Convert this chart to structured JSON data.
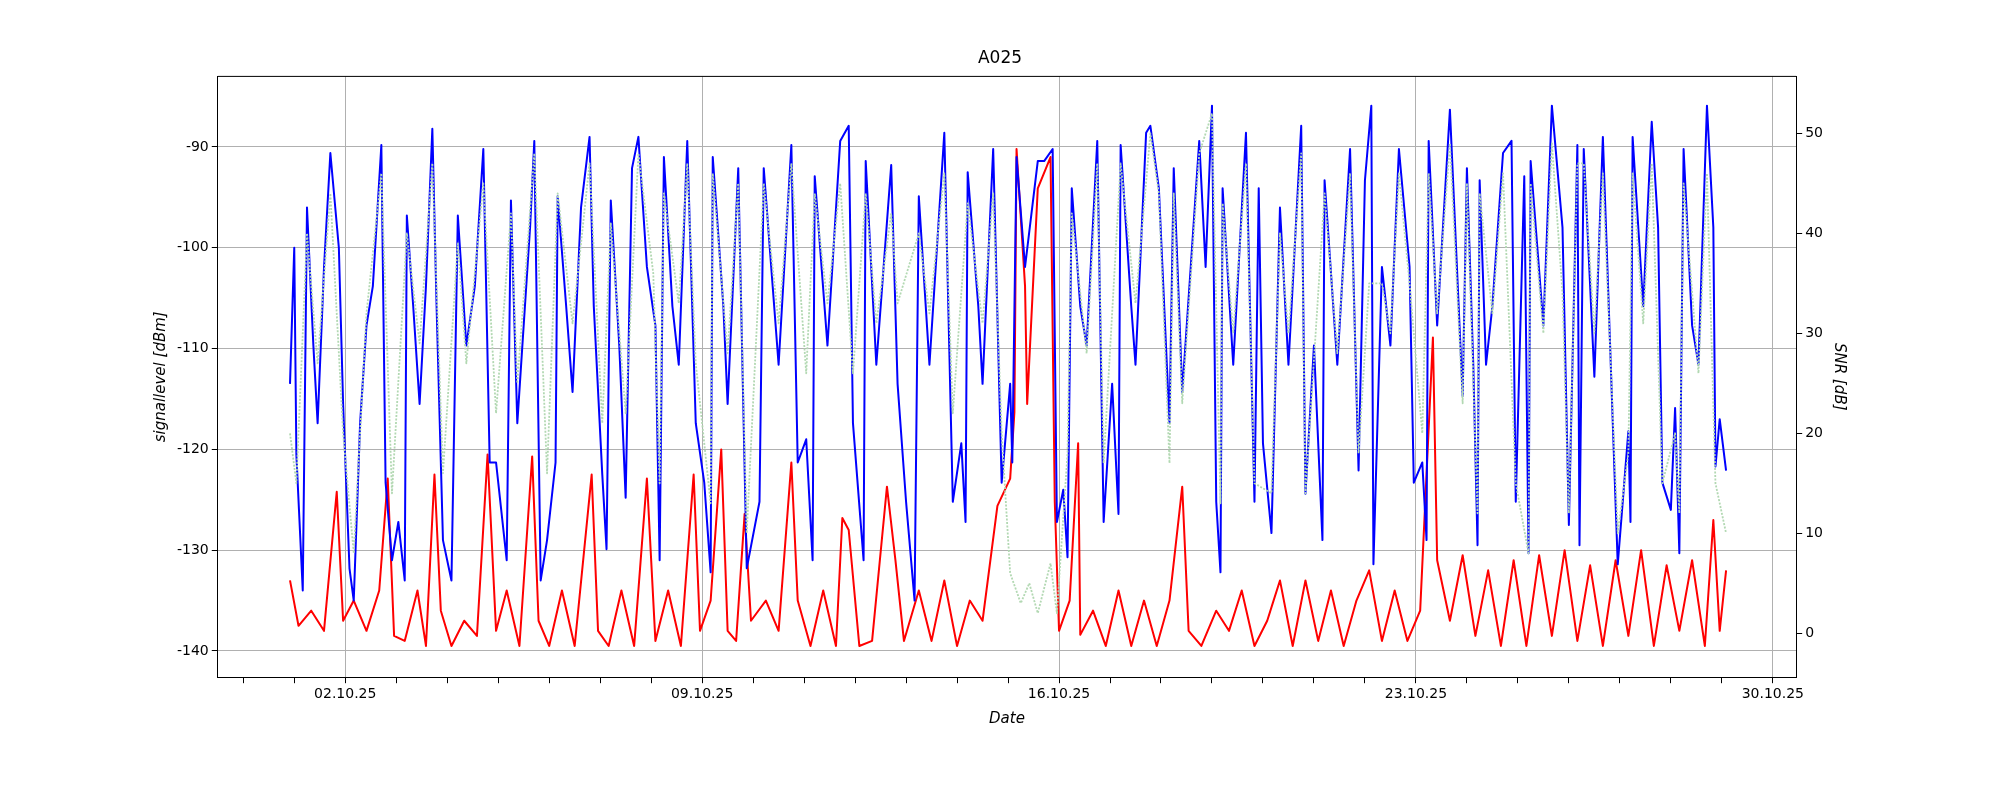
{
  "chart_data": {
    "type": "line",
    "title": "A025",
    "xlabel": "Date",
    "ylabel": "signallevel [dBm]",
    "y2label": "SNR [dB]",
    "grid": true,
    "xlim": [
      "--09-29T12:00",
      "--10-30T11:00"
    ],
    "xticks": [
      {
        "value": "--09-30",
        "label": null
      },
      {
        "value": "--10-01",
        "label": null
      },
      {
        "value": "--10-02",
        "label": "02.10.25"
      },
      {
        "value": "--10-03",
        "label": null
      },
      {
        "value": "--10-04",
        "label": null
      },
      {
        "value": "--10-05",
        "label": null
      },
      {
        "value": "--10-06",
        "label": null
      },
      {
        "value": "--10-07",
        "label": null
      },
      {
        "value": "--10-08",
        "label": null
      },
      {
        "value": "--10-09",
        "label": "09.10.25"
      },
      {
        "value": "--10-10",
        "label": null
      },
      {
        "value": "--10-11",
        "label": null
      },
      {
        "value": "--10-12",
        "label": null
      },
      {
        "value": "--10-13",
        "label": null
      },
      {
        "value": "--10-14",
        "label": null
      },
      {
        "value": "--10-15",
        "label": null
      },
      {
        "value": "--10-16",
        "label": "16.10.25"
      },
      {
        "value": "--10-17",
        "label": null
      },
      {
        "value": "--10-18",
        "label": null
      },
      {
        "value": "--10-19",
        "label": null
      },
      {
        "value": "--10-20",
        "label": null
      },
      {
        "value": "--10-21",
        "label": null
      },
      {
        "value": "--10-22",
        "label": null
      },
      {
        "value": "--10-23",
        "label": "23.10.25"
      },
      {
        "value": "--10-24",
        "label": null
      },
      {
        "value": "--10-25",
        "label": null
      },
      {
        "value": "--10-26",
        "label": null
      },
      {
        "value": "--10-27",
        "label": null
      },
      {
        "value": "--10-28",
        "label": null
      },
      {
        "value": "--10-29",
        "label": null
      },
      {
        "value": "--10-30",
        "label": "30.10.25"
      }
    ],
    "ylim": [
      -142.6,
      -83
    ],
    "yticks": [
      -140,
      -130,
      -120,
      -110,
      -100,
      -90
    ],
    "y2lim": [
      -4.4,
      55.7
    ],
    "y2ticks": [
      0,
      10,
      20,
      30,
      40,
      50
    ],
    "series": [
      {
        "color": "#b2d8b2",
        "axis": "y2",
        "line_style": "dotted",
        "x": [
          "--09-30T22:00",
          "--10-01T01:00",
          "--10-01T06:00",
          "--10-01T11:00",
          "--10-01T17:00",
          "--10-01T23:00",
          "--10-02T04:00",
          "--10-02T10:00",
          "--10-02T17:00",
          "--10-02T22:00",
          "--10-03T05:00",
          "--10-03T11:00",
          "--10-03T17:00",
          "--10-03T22:00",
          "--10-04T05:00",
          "--10-04T09:00",
          "--10-04T17:00",
          "--10-04T23:00",
          "--10-05T06:00",
          "--10-05T09:00",
          "--10-05T17:00",
          "--10-05T23:00",
          "--10-06T04:00",
          "--10-06T11:00",
          "--10-06T19:00",
          "--10-07T01:00",
          "--10-07T05:00",
          "--10-07T12:00",
          "--10-07T18:00",
          "--10-08T01:00",
          "--10-08T04:00",
          "--10-08T06:00",
          "--10-08T13:00",
          "--10-08T17:00",
          "--10-08T21:00",
          "--10-09T04:00",
          "--10-09T05:00",
          "--10-09T12:00",
          "--10-09T17:00",
          "--10-09T21:00",
          "--10-10T05:00",
          "--10-10T12:00",
          "--10-10T18:00",
          "--10-11T01:00",
          "--10-11T05:00",
          "--10-11T11:00",
          "--10-11T17:00",
          "--10-11T23:00",
          "--10-12T05:00",
          "--10-12T10:00",
          "--10-12T17:00",
          "--10-12T20:00",
          "--10-13T06:00",
          "--10-13T11:00",
          "--10-13T18:00",
          "--10-13T22:00",
          "--10-14T05:00",
          "--10-14T12:00",
          "--10-14T17:00",
          "--10-14T21:00",
          "--10-15T01:00",
          "--10-15T06:00",
          "--10-15T10:00",
          "--10-15T14:00",
          "--10-15T20:00",
          "--10-15T23:00",
          "--10-16T04:00",
          "--10-16T06:00",
          "--10-16T13:00",
          "--10-16T18:00",
          "--10-16T21:00",
          "--10-17T05:00",
          "--10-17T12:00",
          "--10-17T19:00",
          "--10-17T23:00",
          "--10-18T04:00",
          "--10-18T06:00",
          "--10-18T10:00",
          "--10-18T18:00",
          "--10-19T00:00",
          "--10-19T04:00",
          "--10-19T05:00",
          "--10-19T10:00",
          "--10-19T16:00",
          "--10-19T20:00",
          "--10-20T04:00",
          "--10-20T08:00",
          "--10-20T12:00",
          "--10-20T18:00",
          "--10-20T20:00",
          "--10-21T05:00",
          "--10-21T11:00",
          "--10-21T17:00",
          "--10-21T21:00",
          "--10-22T02:00",
          "--10-22T08:00",
          "--10-22T12:00",
          "--10-22T16:00",
          "--10-22T21:00",
          "--10-23T03:00",
          "--10-23T06:00",
          "--10-23T10:00",
          "--10-23T16:00",
          "--10-23T22:00",
          "--10-24T00:00",
          "--10-24T05:00",
          "--10-24T06:00",
          "--10-24T12:00",
          "--10-24T17:00",
          "--10-24T23:00",
          "--10-25T05:00",
          "--10-25T06:00",
          "--10-25T12:00",
          "--10-25T16:00",
          "--10-25T21:00",
          "--10-26T00:00",
          "--10-26T04:00",
          "--10-26T07:00",
          "--10-26T12:00",
          "--10-26T16:00",
          "--10-26T23:00",
          "--10-27T04:00",
          "--10-27T06:00",
          "--10-27T11:00",
          "--10-27T15:00",
          "--10-27T20:00",
          "--10-28T02:00",
          "--10-28T04:00",
          "--10-28T06:00",
          "--10-28T13:00",
          "--10-28T17:00",
          "--10-28T21:00",
          "--10-29T02:00"
        ],
        "values": [
          20,
          15,
          40,
          27,
          44,
          20,
          8,
          32,
          46,
          14,
          40,
          29,
          47,
          16,
          39,
          27,
          45,
          22,
          42,
          25,
          48,
          16,
          44,
          31,
          47,
          21,
          41,
          22,
          48,
          36,
          15,
          44,
          33,
          47,
          27,
          13,
          46,
          28,
          45,
          10,
          45,
          31,
          47,
          26,
          44,
          33,
          45,
          26,
          44,
          31,
          42,
          33,
          40,
          32,
          46,
          22,
          43,
          31,
          44,
          20,
          6,
          3,
          5,
          2,
          7,
          2,
          18,
          42,
          28,
          47,
          17,
          47,
          33,
          50,
          44,
          17,
          44,
          23,
          48,
          52,
          13,
          43,
          30,
          47,
          15,
          14,
          40,
          30,
          48,
          14,
          44,
          28,
          46,
          18,
          35,
          35,
          30,
          46,
          35,
          20,
          46,
          32,
          49,
          23,
          45,
          12,
          44,
          32,
          46,
          15,
          8,
          45,
          30,
          49,
          34,
          12,
          47,
          47,
          30,
          46,
          10,
          18,
          46,
          31,
          47,
          15,
          20,
          12,
          45,
          26,
          46,
          15,
          10
        ]
      },
      {
        "color": "#0000ff",
        "x": [
          "--09-30T22:00",
          "--10-01T00:00",
          "--10-01T01:00",
          "--10-01T04:00",
          "--10-01T06:00",
          "--10-01T09:00",
          "--10-01T11:00",
          "--10-01T14:00",
          "--10-01T17:00",
          "--10-01T21:00",
          "--10-01T23:00",
          "--10-02T02:00",
          "--10-02T04:00",
          "--10-02T07:00",
          "--10-02T10:00",
          "--10-02T13:00",
          "--10-02T17:00",
          "--10-02T19:00",
          "--10-02T22:00",
          "--10-03T01:00",
          "--10-03T04:00",
          "--10-03T05:00",
          "--10-03T08:00",
          "--10-03T11:00",
          "--10-03T14:00",
          "--10-03T17:00",
          "--10-03T19:00",
          "--10-03T22:00",
          "--10-04T02:00",
          "--10-04T05:00",
          "--10-04T09:00",
          "--10-04T13:00",
          "--10-04T17:00",
          "--10-04T20:00",
          "--10-04T23:00",
          "--10-05T04:00",
          "--10-05T06:00",
          "--10-05T09:00",
          "--10-05T15:00",
          "--10-05T17:00",
          "--10-05T20:00",
          "--10-05T23:00",
          "--10-06T03:00",
          "--10-06T04:00",
          "--10-06T08:00",
          "--10-06T11:00",
          "--10-06T15:00",
          "--10-06T19:00",
          "--10-06T21:00",
          "--10-07T01:00",
          "--10-07T03:00",
          "--10-07T05:00",
          "--10-07T09:00",
          "--10-07T12:00",
          "--10-07T15:00",
          "--10-07T18:00",
          "--10-07T22:00",
          "--10-08T02:00",
          "--10-08T04:00",
          "--10-08T06:00",
          "--10-08T10:00",
          "--10-08T13:00",
          "--10-08T17:00",
          "--10-08T21:00",
          "--10-09T01:00",
          "--10-09T04:00",
          "--10-09T05:00",
          "--10-09T10:00",
          "--10-09T12:00",
          "--10-09T17:00",
          "--10-09T21:00",
          "--10-10T03:00",
          "--10-10T05:00",
          "--10-10T12:00",
          "--10-10T18:00",
          "--10-10T21:00",
          "--10-11T01:00",
          "--10-11T04:00",
          "--10-11T05:00",
          "--10-11T11:00",
          "--10-11T17:00",
          "--10-11T21:00",
          "--10-11T23:00",
          "--10-12T04:00",
          "--10-12T05:00",
          "--10-12T10:00",
          "--10-12T17:00",
          "--10-12T20:00",
          "--10-13T00:00",
          "--10-13T04:00",
          "--10-13T06:00",
          "--10-13T11:00",
          "--10-13T18:00",
          "--10-13T22:00",
          "--10-14T02:00",
          "--10-14T04:00",
          "--10-14T05:00",
          "--10-14T10:00",
          "--10-14T12:00",
          "--10-14T17:00",
          "--10-14T21:00",
          "--10-15T01:00",
          "--10-15T02:00",
          "--10-15T04:00",
          "--10-15T08:00",
          "--10-15T14:00",
          "--10-15T17:00",
          "--10-15T21:00",
          "--10-15T23:00",
          "--10-16T02:00",
          "--10-16T04:00",
          "--10-16T06:00",
          "--10-16T10:00",
          "--10-16T13:00",
          "--10-16T18:00",
          "--10-16T21:00",
          "--10-17T01:00",
          "--10-17T04:00",
          "--10-17T05:00",
          "--10-17T10:00",
          "--10-17T12:00",
          "--10-17T17:00",
          "--10-17T19:00",
          "--10-17T23:00",
          "--10-18T04:00",
          "--10-18T06:00",
          "--10-18T10:00",
          "--10-18T14:00",
          "--10-18T18:00",
          "--10-18T21:00",
          "--10-19T00:00",
          "--10-19T02:00",
          "--10-19T04:00",
          "--10-19T05:00",
          "--10-19T10:00",
          "--10-19T16:00",
          "--10-19T20:00",
          "--10-19T22:00",
          "--10-20T00:00",
          "--10-20T04:00",
          "--10-20T08:00",
          "--10-20T12:00",
          "--10-20T18:00",
          "--10-20T20:00",
          "--10-21T00:00",
          "--10-21T04:00",
          "--10-21T05:00",
          "--10-21T11:00",
          "--10-21T17:00",
          "--10-21T21:00",
          "--10-22T00:00",
          "--10-22T03:00",
          "--10-22T04:00",
          "--10-22T08:00",
          "--10-22T12:00",
          "--10-22T16:00",
          "--10-22T21:00",
          "--10-22T23:00",
          "--10-23T03:00",
          "--10-23T05:00",
          "--10-23T06:00",
          "--10-23T10:00",
          "--10-23T16:00",
          "--10-23T22:00",
          "--10-24T00:00",
          "--10-24T03:00",
          "--10-24T05:00",
          "--10-24T06:00",
          "--10-24T09:00",
          "--10-24T12:00",
          "--10-24T17:00",
          "--10-24T21:00",
          "--10-24T23:00",
          "--10-25T03:00",
          "--10-25T05:00",
          "--10-25T06:00",
          "--10-25T12:00",
          "--10-25T16:00",
          "--10-25T21:00",
          "--10-26T00:00",
          "--10-26T04:00",
          "--10-26T05:00",
          "--10-26T07:00",
          "--10-26T12:00",
          "--10-26T16:00",
          "--10-26T21:00",
          "--10-26T23:00",
          "--10-27T04:00",
          "--10-27T05:00",
          "--10-27T06:00",
          "--10-27T11:00",
          "--10-27T15:00",
          "--10-27T18:00",
          "--10-27T20:00",
          "--10-28T00:00",
          "--10-28T02:00",
          "--10-28T04:00",
          "--10-28T06:00",
          "--10-28T10:00",
          "--10-28T13:00",
          "--10-28T17:00",
          "--10-28T20:00",
          "--10-28T21:00",
          "--10-28T23:00",
          "--10-29T02:00"
        ],
        "values": [
          -113.5,
          -100,
          -120.5,
          -134,
          -96,
          -109.7,
          -117.4,
          -102,
          -90.6,
          -100,
          -115.5,
          -131.8,
          -135,
          -117.4,
          -107.7,
          -103.8,
          -89.8,
          -123.3,
          -131,
          -127.2,
          -133,
          -96.8,
          -105.8,
          -115.5,
          -103.8,
          -88.2,
          -105.8,
          -129,
          -133,
          -96.8,
          -109.7,
          -103.8,
          -90.2,
          -121.3,
          -121.3,
          -131,
          -95.3,
          -117.4,
          -98,
          -89.4,
          -133,
          -129,
          -121.3,
          -94.9,
          -105.8,
          -114.3,
          -96,
          -89,
          -105.8,
          -122.5,
          -129.9,
          -95.3,
          -109.7,
          -124.8,
          -92.1,
          -89,
          -101.9,
          -107.7,
          -131,
          -91,
          -105.8,
          -111.6,
          -89.4,
          -117.4,
          -123.3,
          -132.2,
          -91,
          -105.8,
          -115.5,
          -92.1,
          -131.8,
          -125.2,
          -92.1,
          -111.6,
          -89.8,
          -121.3,
          -119,
          -131,
          -92.9,
          -109.7,
          -89.4,
          -87.9,
          -117.4,
          -131,
          -91.4,
          -111.6,
          -91.8,
          -113.5,
          -125.2,
          -135,
          -94.9,
          -111.6,
          -88.6,
          -125.2,
          -119.4,
          -127.2,
          -92.5,
          -105.8,
          -113.5,
          -90.2,
          -123.3,
          -113.5,
          -121.3,
          -91,
          -101.9,
          -91.4,
          -91.4,
          -90.2,
          -127.2,
          -124,
          -130.7,
          -94.1,
          -105.8,
          -109.7,
          -89.4,
          -127.2,
          -113.5,
          -126.4,
          -89.8,
          -105.8,
          -111.6,
          -88.6,
          -87.9,
          -94.1,
          -117.4,
          -92.1,
          -114.3,
          -101.9,
          -89.4,
          -101.9,
          -85.9,
          -125.2,
          -132.2,
          -94.1,
          -111.6,
          -88.6,
          -125.2,
          -94.1,
          -119.4,
          -128.3,
          -96,
          -111.6,
          -87.9,
          -124.4,
          -109.7,
          -129,
          -93.3,
          -111.6,
          -90.2,
          -122.1,
          -93.3,
          -85.9,
          -131.4,
          -101.9,
          -109.7,
          -90.2,
          -101.9,
          -123.3,
          -121.3,
          -129,
          -89.4,
          -107.7,
          -86.3,
          -114.7,
          -92.1,
          -111.6,
          -129.5,
          -93.3,
          -111.6,
          -105.8,
          -90.6,
          -89.4,
          -125.2,
          -92.9,
          -130.3,
          -91.4,
          -107.7,
          -85.9,
          -98,
          -127.5,
          -89.8,
          -129.5,
          -90.2,
          -112.8,
          -89,
          -119.4,
          -131.4,
          -118.2,
          -127.2,
          -89,
          -105.8,
          -87.5,
          -98,
          -123.3,
          -126,
          -115.9,
          -130.3,
          -90.2,
          -107.7,
          -111.6,
          -85.9,
          -98,
          -121.7,
          -117,
          -122.1
        ]
      },
      {
        "color": "#ff0000",
        "x": [
          "--09-30T22:00",
          "--10-01T02:00",
          "--10-01T08:00",
          "--10-01T14:00",
          "--10-01T20:00",
          "--10-01T23:00",
          "--10-02T04:00",
          "--10-02T10:00",
          "--10-02T16:00",
          "--10-02T20:00",
          "--10-02T23:00",
          "--10-03T04:00",
          "--10-03T10:00",
          "--10-03T14:00",
          "--10-03T18:00",
          "--10-03T21:00",
          "--10-04T02:00",
          "--10-04T08:00",
          "--10-04T14:00",
          "--10-04T19:00",
          "--10-04T23:00",
          "--10-05T04:00",
          "--10-05T10:00",
          "--10-05T16:00",
          "--10-05T19:00",
          "--10-06T00:00",
          "--10-06T06:00",
          "--10-06T12:00",
          "--10-06T20:00",
          "--10-06T23:00",
          "--10-07T04:00",
          "--10-07T10:00",
          "--10-07T16:00",
          "--10-07T22:00",
          "--10-08T02:00",
          "--10-08T08:00",
          "--10-08T14:00",
          "--10-08T20:00",
          "--10-08T23:00",
          "--10-09T04:00",
          "--10-09T09:00",
          "--10-09T12:00",
          "--10-09T16:00",
          "--10-09T20:00",
          "--10-09T23:00",
          "--10-10T06:00",
          "--10-10T12:00",
          "--10-10T18:00",
          "--10-10T21:00",
          "--10-11T03:00",
          "--10-11T09:00",
          "--10-11T15:00",
          "--10-11T18:00",
          "--10-11T21:00",
          "--10-12T02:00",
          "--10-12T08:00",
          "--10-12T15:00",
          "--10-12T19:00",
          "--10-12T23:00",
          "--10-13T06:00",
          "--10-13T12:00",
          "--10-13T18:00",
          "--10-14T00:00",
          "--10-14T06:00",
          "--10-14T12:00",
          "--10-14T19:00",
          "--10-15T01:00",
          "--10-15T03:00",
          "--10-15T04:00",
          "--10-15T08:00",
          "--10-15T09:00",
          "--10-15T14:00",
          "--10-15T20:00",
          "--10-15T22:00",
          "--10-16T00:00",
          "--10-16T05:00",
          "--10-16T09:00",
          "--10-16T10:00",
          "--10-16T16:00",
          "--10-16T22:00",
          "--10-17T04:00",
          "--10-17T10:00",
          "--10-17T16:00",
          "--10-17T22:00",
          "--10-18T04:00",
          "--10-18T10:00",
          "--10-18T13:00",
          "--10-18T19:00",
          "--10-19T02:00",
          "--10-19T08:00",
          "--10-19T14:00",
          "--10-19T20:00",
          "--10-20T02:00",
          "--10-20T08:00",
          "--10-20T14:00",
          "--10-20T20:00",
          "--10-21T02:00",
          "--10-21T08:00",
          "--10-21T14:00",
          "--10-21T20:00",
          "--10-22T02:00",
          "--10-22T08:00",
          "--10-22T14:00",
          "--10-22T20:00",
          "--10-23T02:00",
          "--10-23T08:00",
          "--10-23T10:00",
          "--10-23T16:00",
          "--10-23T22:00",
          "--10-24T04:00",
          "--10-24T10:00",
          "--10-24T16:00",
          "--10-24T22:00",
          "--10-25T04:00",
          "--10-25T10:00",
          "--10-25T16:00",
          "--10-25T22:00",
          "--10-26T04:00",
          "--10-26T10:00",
          "--10-26T16:00",
          "--10-26T22:00",
          "--10-27T04:00",
          "--10-27T10:00",
          "--10-27T16:00",
          "--10-27T22:00",
          "--10-28T04:00",
          "--10-28T10:00",
          "--10-28T16:00",
          "--10-28T20:00",
          "--10-28T23:00",
          "--10-29T02:00"
        ],
        "values": [
          -133,
          -137.5,
          -136,
          -138,
          -124.2,
          -137,
          -135,
          -138,
          -134,
          -122.9,
          -138.5,
          -139,
          -134,
          -139.5,
          -122.5,
          -136,
          -139.5,
          -137,
          -138.5,
          -120.5,
          -138,
          -134,
          -139.5,
          -120.7,
          -137,
          -139.5,
          -134,
          -139.5,
          -122.5,
          -138,
          -139.5,
          -134,
          -139.5,
          -122.9,
          -139,
          -134,
          -139.5,
          -122.5,
          -138,
          -135,
          -120,
          -138,
          -139,
          -126.4,
          -137,
          -135,
          -138,
          -121.3,
          -135,
          -139.5,
          -134,
          -139.5,
          -126.8,
          -128,
          -139.5,
          -139,
          -123.7,
          -131,
          -139,
          -134,
          -139,
          -133,
          -139.5,
          -135,
          -137,
          -125.6,
          -122.9,
          -116.3,
          -90.2,
          -103.8,
          -115.5,
          -94.1,
          -91,
          -125.2,
          -138,
          -135,
          -119.4,
          -138.4,
          -136,
          -139.5,
          -134,
          -139.5,
          -135,
          -139.5,
          -135,
          -123.7,
          -138,
          -139.5,
          -136,
          -138,
          -134,
          -139.5,
          -137,
          -133,
          -139.5,
          -133,
          -139,
          -134,
          -139.5,
          -135,
          -132,
          -139,
          -134,
          -139,
          -136,
          -108.9,
          -131,
          -137,
          -130.5,
          -138.5,
          -132,
          -139.5,
          -131,
          -139.5,
          -130.5,
          -138.5,
          -130,
          -139,
          -131.5,
          -139.5,
          -131,
          -138.5,
          -130,
          -139.5,
          -131.5,
          -138,
          -131,
          -139.5,
          -127,
          -138,
          -132
        ]
      }
    ]
  }
}
